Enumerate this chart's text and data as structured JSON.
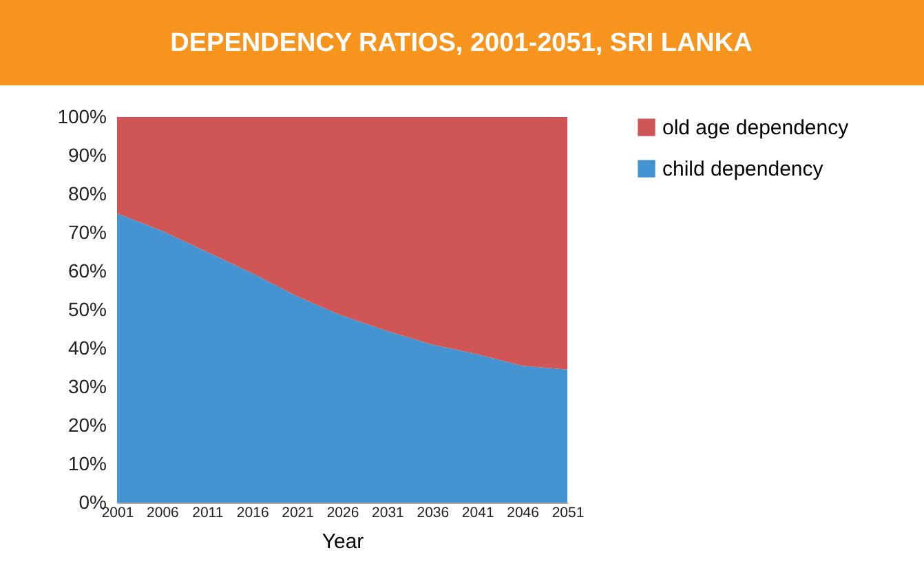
{
  "chart_data": {
    "type": "area",
    "title": "DEPENDENCY RATIOS, 2001-2051, SRI LANKA",
    "xlabel": "Year",
    "categories": [
      "2001",
      "2006",
      "2011",
      "2016",
      "2021",
      "2026",
      "2031",
      "2036",
      "2041",
      "2046",
      "2051"
    ],
    "stacked": true,
    "series": [
      {
        "name": "child dependency",
        "color": "#4394d0",
        "values": [
          75,
          70.5,
          65,
          59.5,
          53.5,
          48.5,
          44.5,
          41,
          38.5,
          35.5,
          34.5
        ]
      },
      {
        "name": "old age dependency",
        "color": "#d05655",
        "values": [
          25,
          29.5,
          35,
          40.5,
          46.5,
          51.5,
          55.5,
          59,
          61.5,
          64.5,
          65.5
        ]
      }
    ],
    "ylim": [
      0,
      100
    ],
    "yticks": [
      {
        "value": 0,
        "label": "0%"
      },
      {
        "value": 10,
        "label": "10%"
      },
      {
        "value": 20,
        "label": "20%"
      },
      {
        "value": 30,
        "label": "30%"
      },
      {
        "value": 40,
        "label": "40%"
      },
      {
        "value": 50,
        "label": "50%"
      },
      {
        "value": 60,
        "label": "60%"
      },
      {
        "value": 70,
        "label": "70%"
      },
      {
        "value": 80,
        "label": "80%"
      },
      {
        "value": 90,
        "label": "90%"
      },
      {
        "value": 100,
        "label": "100%"
      }
    ],
    "grid": false,
    "legend": "right"
  }
}
